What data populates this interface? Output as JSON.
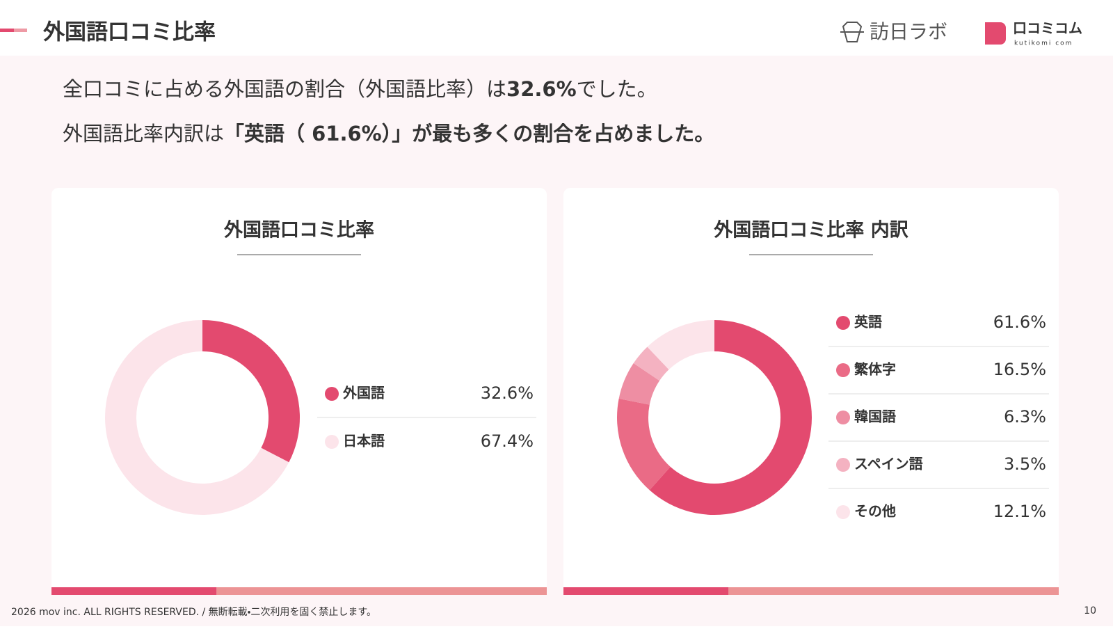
{
  "header": {
    "title": "外国語口コミ比率",
    "logo1": "訪日ラボ",
    "logo2": "口コミコム",
    "logo2_sub": "kutikomi com"
  },
  "summary": {
    "line1": [
      "全口コミに占める外国語の割合（外国語比率）は",
      "32.6%",
      "でした。"
    ],
    "line2": [
      "外国語比率内訳は",
      "「英語（ 61.6%）」が最も多くの割合を占めました。"
    ]
  },
  "chart_data": [
    {
      "type": "donut",
      "title": "外国語口コミ比率",
      "categories": [
        "外国語",
        "日本語"
      ],
      "values": [
        32.6,
        67.4
      ],
      "value_labels": [
        "32.6%",
        "67.4%"
      ],
      "colors": [
        "#e34a6f",
        "#fce4ea"
      ]
    },
    {
      "type": "donut",
      "title": "外国語口コミ比率 内訳",
      "categories": [
        "英語",
        "繁体字",
        "韓国語",
        "スペイン語",
        "その他"
      ],
      "values": [
        61.6,
        16.5,
        6.3,
        3.5,
        12.1
      ],
      "value_labels": [
        "61.6%",
        "16.5%",
        "6.3%",
        "3.5%",
        "12.1%"
      ],
      "colors": [
        "#e34a6f",
        "#ea6b86",
        "#ee8ea3",
        "#f4b2c1",
        "#fce4ea"
      ]
    }
  ],
  "footer": {
    "copyright": "2026 mov inc. ALL RIGHTS RESERVED. / 無断転載・二次利用を固く禁止します。",
    "page": "10"
  }
}
